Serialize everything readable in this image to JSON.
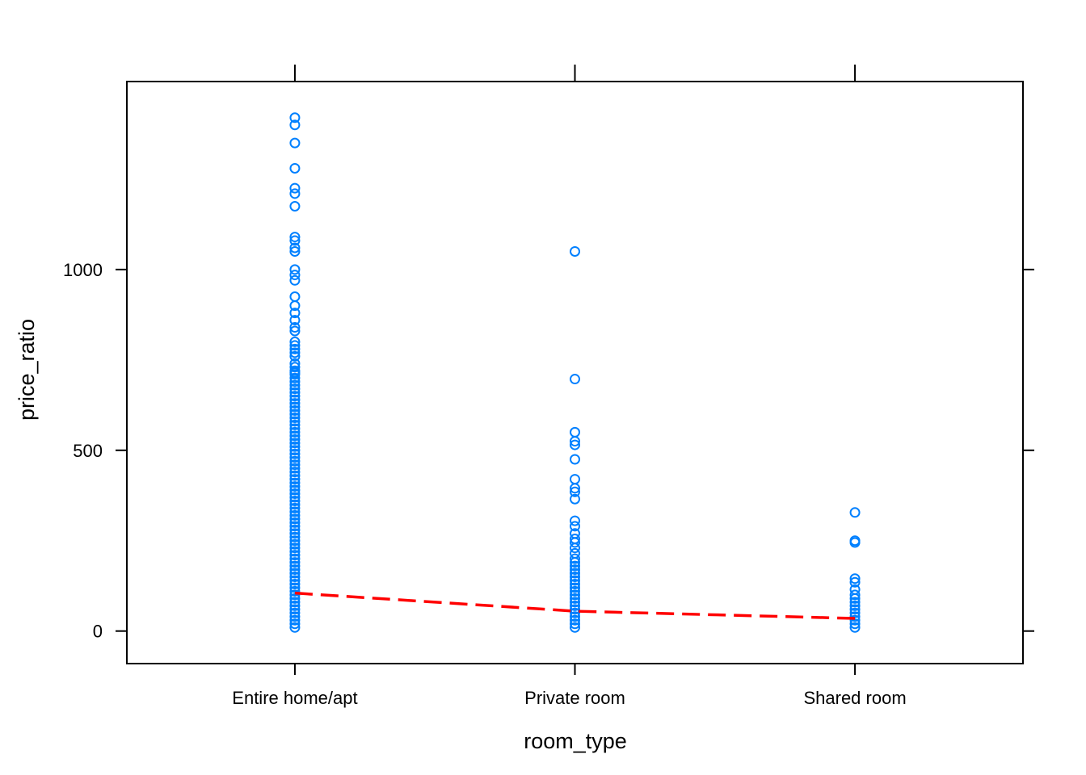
{
  "chart_data": {
    "type": "scatter",
    "title": "",
    "xlabel": "room_type",
    "ylabel": "price_ratio",
    "categories": [
      "Entire home/apt",
      "Private room",
      "Shared room"
    ],
    "ylim": [
      -90,
      1520
    ],
    "yticks": [
      0,
      500,
      1000
    ],
    "grid": false,
    "colors": {
      "points": "#0080ff",
      "trend": "#ff0000"
    },
    "series": [
      {
        "category": "Entire home/apt",
        "values": [
          1420,
          1400,
          1350,
          1280,
          1225,
          1210,
          1175,
          1090,
          1080,
          1060,
          1050,
          1000,
          985,
          970,
          925,
          900,
          880,
          860,
          840,
          830,
          800,
          790,
          780,
          770,
          760,
          740,
          730,
          720,
          715,
          710,
          700,
          690,
          680,
          670,
          660,
          650,
          640,
          630,
          620,
          610,
          600,
          590,
          580,
          570,
          560,
          550,
          540,
          530,
          520,
          510,
          500,
          490,
          480,
          470,
          460,
          450,
          440,
          430,
          420,
          410,
          400,
          390,
          380,
          370,
          360,
          350,
          340,
          330,
          320,
          310,
          300,
          290,
          280,
          270,
          260,
          250,
          240,
          230,
          220,
          210,
          200,
          190,
          180,
          170,
          160,
          150,
          140,
          130,
          120,
          110,
          100,
          90,
          80,
          70,
          60,
          50,
          40,
          30,
          20,
          10
        ]
      },
      {
        "category": "Private room",
        "values": [
          1050,
          697,
          550,
          525,
          515,
          475,
          420,
          395,
          385,
          365,
          305,
          290,
          270,
          255,
          245,
          230,
          215,
          200,
          190,
          180,
          170,
          160,
          150,
          140,
          130,
          120,
          110,
          100,
          90,
          80,
          70,
          60,
          50,
          40,
          30,
          20,
          10
        ]
      },
      {
        "category": "Shared room",
        "values": [
          328,
          250,
          245,
          145,
          135,
          115,
          100,
          90,
          80,
          70,
          60,
          50,
          40,
          30,
          20,
          10
        ]
      }
    ],
    "trend_line": {
      "x": [
        "Entire home/apt",
        "Private room",
        "Shared room"
      ],
      "y": [
        105,
        55,
        35
      ]
    }
  }
}
